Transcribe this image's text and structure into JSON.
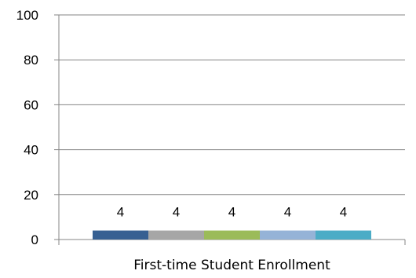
{
  "chart_data": {
    "type": "bar",
    "categories": [
      "First-time Student Enrollment"
    ],
    "series": [
      {
        "values": [
          4
        ],
        "color": "#376092"
      },
      {
        "values": [
          4
        ],
        "color": "#a6a6a6"
      },
      {
        "values": [
          4
        ],
        "color": "#9bbb59"
      },
      {
        "values": [
          4
        ],
        "color": "#95b3d7"
      },
      {
        "values": [
          4
        ],
        "color": "#4bacc6"
      }
    ],
    "y_ticks": [
      "0",
      "20",
      "40",
      "60",
      "80",
      "100"
    ],
    "ylim": [
      0,
      100
    ],
    "grid": true,
    "data_labels": true,
    "title": "",
    "xlabel": "",
    "ylabel": ""
  }
}
